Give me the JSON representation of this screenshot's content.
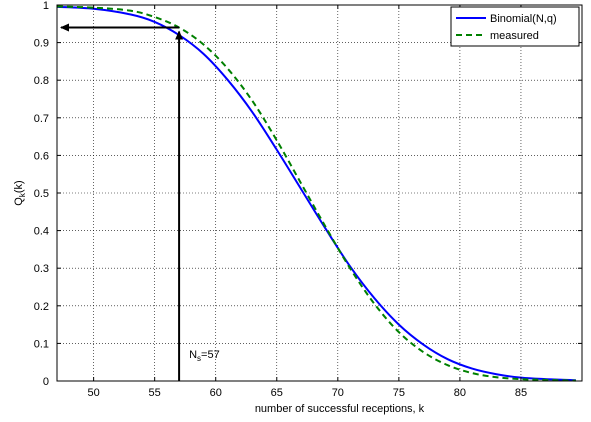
{
  "chart_data": {
    "type": "line",
    "xlabel": "number of successful receptions, k",
    "ylabel_main": "Q",
    "ylabel_sub": "k",
    "ylabel_arg": "(k)",
    "xlim": [
      47,
      90
    ],
    "ylim": [
      0,
      1
    ],
    "xticks": [
      50,
      55,
      60,
      65,
      70,
      75,
      80,
      85
    ],
    "yticks": [
      0,
      0.1,
      0.2,
      0.3,
      0.4,
      0.5,
      0.6,
      0.7,
      0.8,
      0.9,
      1
    ],
    "grid": true,
    "legend_position": "top-right",
    "series": [
      {
        "name": "Binomial(N,q)",
        "color": "#0000ff",
        "style": "solid",
        "x": [
          47,
          50,
          53,
          55,
          57,
          59,
          61,
          63,
          65,
          67,
          69,
          71,
          73,
          75,
          77,
          79,
          81,
          83,
          85,
          87,
          89.5
        ],
        "y": [
          0.995,
          0.99,
          0.975,
          0.955,
          0.92,
          0.87,
          0.8,
          0.715,
          0.615,
          0.51,
          0.405,
          0.305,
          0.22,
          0.15,
          0.097,
          0.058,
          0.033,
          0.018,
          0.009,
          0.005,
          0.002
        ]
      },
      {
        "name": "measured",
        "color": "#008000",
        "style": "dashed",
        "x": [
          47,
          50,
          53,
          55,
          57,
          59,
          61,
          63,
          65,
          67,
          69,
          71,
          73,
          75,
          77,
          79,
          81,
          83,
          85,
          87,
          89.5
        ],
        "y": [
          0.996,
          0.993,
          0.985,
          0.968,
          0.94,
          0.895,
          0.83,
          0.745,
          0.64,
          0.525,
          0.41,
          0.3,
          0.205,
          0.13,
          0.077,
          0.042,
          0.021,
          0.01,
          0.005,
          0.003,
          0.001
        ]
      }
    ],
    "annotations": {
      "ns_label_main": "N",
      "ns_label_sub": "s",
      "ns_label_rest": "=57",
      "ns_x": 57,
      "ns_y": 0.94
    }
  }
}
